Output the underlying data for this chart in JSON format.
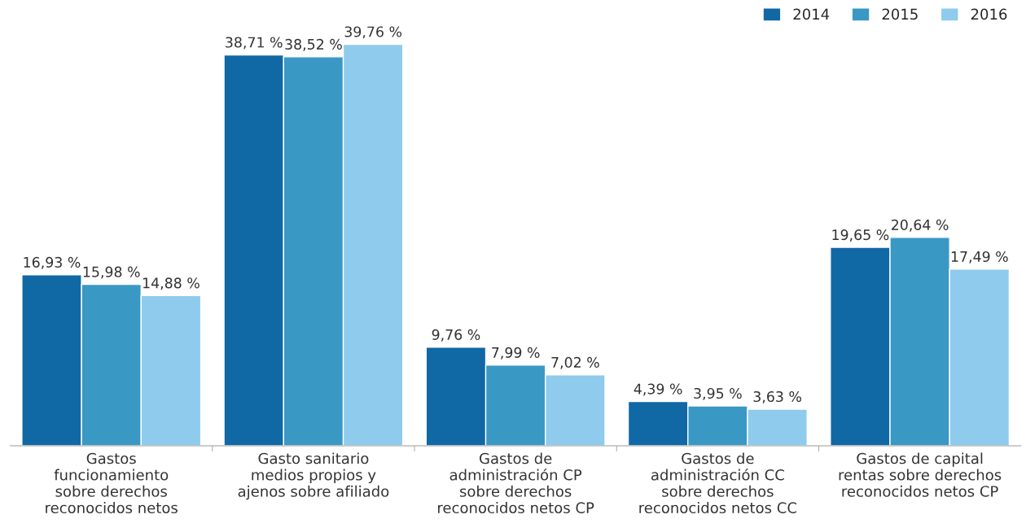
{
  "chart_data": {
    "type": "bar",
    "categories": [
      "Gastos\nfuncionamiento\nsobre derechos\nreconocidos netos",
      "Gasto sanitario\nmedios propios y\najenos sobre afiliado",
      "Gastos de\nadministración CP\nsobre derechos\nreconocidos netos CP",
      "Gastos de\nadministración CC\nsobre derechos\nreconocidos netos CC",
      "Gastos de capital\nrentas sobre derechos\nreconocidos netos CP"
    ],
    "series": [
      {
        "name": "2014",
        "color": "#1068a5",
        "values": [
          16.93,
          38.71,
          9.76,
          4.39,
          19.65
        ],
        "value_labels": [
          "16,93 %",
          "38,71 %",
          "9,76 %",
          "4,39 %",
          "19,65 %"
        ]
      },
      {
        "name": "2015",
        "color": "#3a98c4",
        "values": [
          15.98,
          38.52,
          7.99,
          3.95,
          20.64
        ],
        "value_labels": [
          "15,98 %",
          "38,52 %",
          "7,99 %",
          "3,95 %",
          "20,64 %"
        ]
      },
      {
        "name": "2016",
        "color": "#8ecbec",
        "values": [
          14.88,
          39.76,
          7.02,
          3.63,
          17.49
        ],
        "value_labels": [
          "14,88 %",
          "39,76 %",
          "7,02 %",
          "3,63 %",
          "17,49 %"
        ]
      }
    ],
    "legend": "top right",
    "grid": false,
    "tick_labels": "x"
  }
}
